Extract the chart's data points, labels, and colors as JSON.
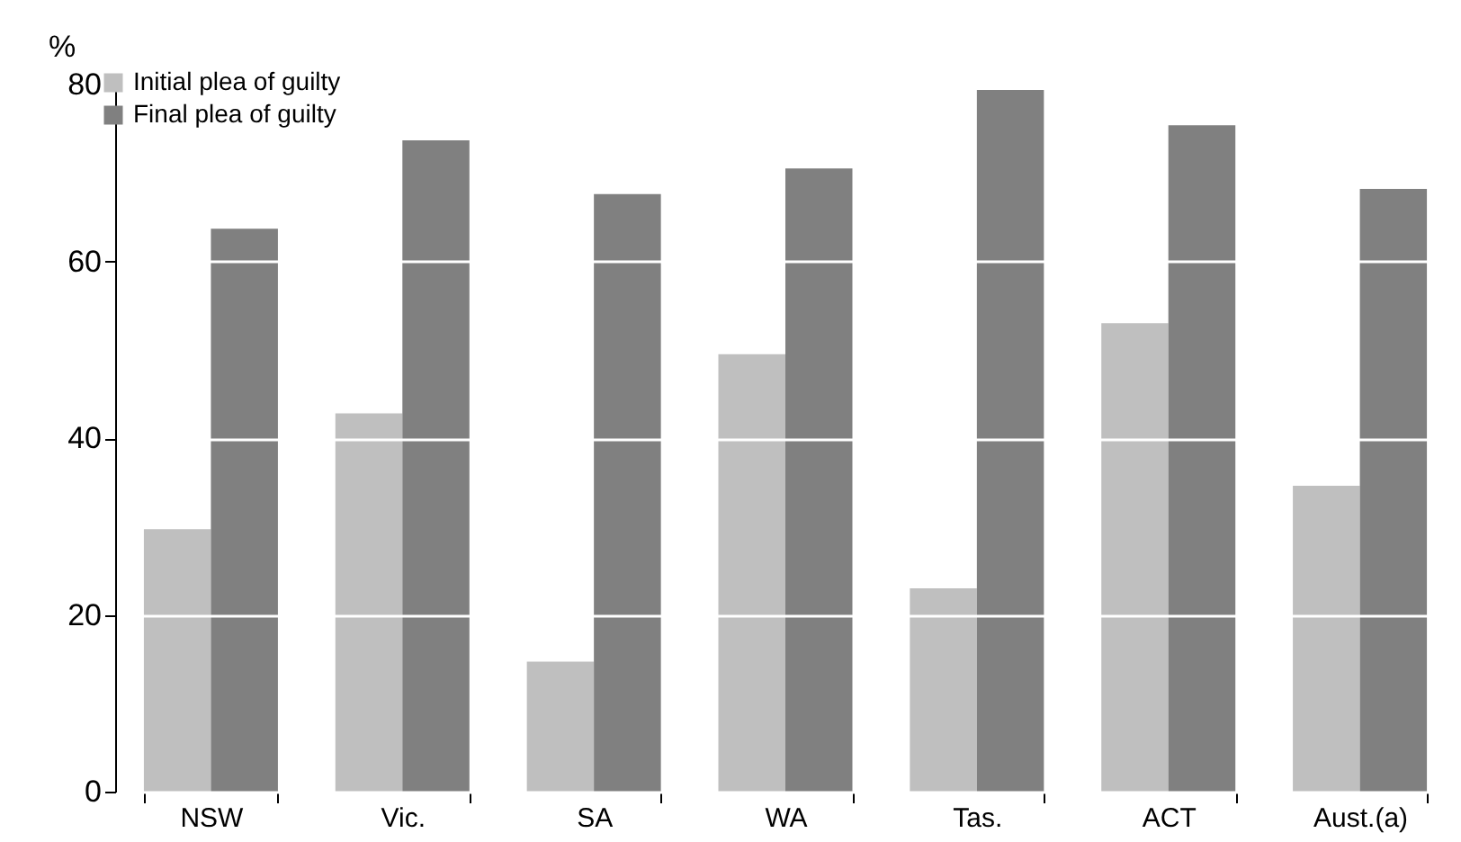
{
  "chart_data": {
    "type": "bar",
    "ylabel": "%",
    "categories": [
      "NSW",
      "Vic.",
      "SA",
      "WA",
      "Tas.",
      "ACT",
      "Aust.(a)"
    ],
    "series": [
      {
        "name": "Initial plea of guilty",
        "color": "#bfbfbf",
        "values": [
          29.7,
          42.8,
          14.7,
          49.5,
          23.0,
          53.0,
          34.6
        ]
      },
      {
        "name": "Final plea of guilty",
        "color": "#808080",
        "values": [
          63.7,
          73.7,
          67.6,
          70.5,
          79.4,
          75.4,
          68.2
        ]
      }
    ],
    "ylim": [
      0,
      80
    ],
    "yticks": [
      0,
      20,
      40,
      60,
      80
    ],
    "grid": "y",
    "legend": "top left"
  }
}
